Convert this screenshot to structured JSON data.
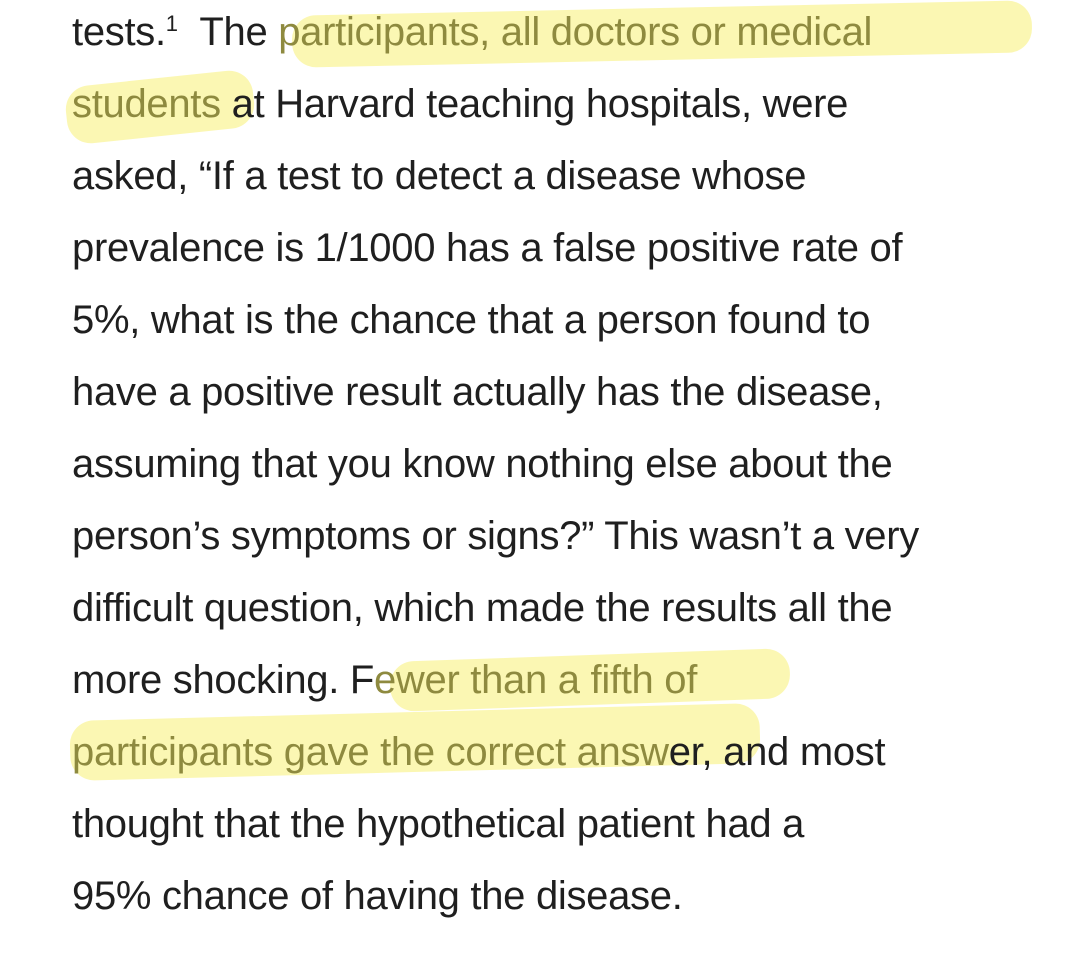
{
  "document": {
    "highlight_color": "#f9f49a",
    "highlight_text_color": "#8e8a3f",
    "text_color": "#1f1f1f",
    "lines": [
      {
        "before": "tests.",
        "sup": "1",
        "mid": "The ",
        "highlight": "participants, all doctors or medical",
        "after": ""
      },
      {
        "before": "",
        "highlight": "students",
        "after": " at Harvard teaching hospitals, were"
      },
      {
        "before": "asked, “If a test to detect a disease whose",
        "highlight": "",
        "after": ""
      },
      {
        "before": "prevalence is 1/1000 has a false positive rate of",
        "highlight": "",
        "after": ""
      },
      {
        "before": "5%, what is the chance that a person found to",
        "highlight": "",
        "after": ""
      },
      {
        "before": "have a positive result actually has the disease,",
        "highlight": "",
        "after": ""
      },
      {
        "before": "assuming that you know nothing else about the",
        "highlight": "",
        "after": ""
      },
      {
        "before": "person’s symptoms or signs?” This wasn’t a very",
        "highlight": "",
        "after": ""
      },
      {
        "before": "difficult question, which made the results all the",
        "highlight": "",
        "after": ""
      },
      {
        "before": "more shocking. F",
        "highlight": "ewer than a fifth of",
        "after": ""
      },
      {
        "before": "",
        "highlight": "participants gave the correct answ",
        "after": "er, and most"
      },
      {
        "before": "thought that the hypothetical patient had a",
        "highlight": "",
        "after": ""
      },
      {
        "before": "95% chance of having the disease.",
        "highlight": "",
        "after": ""
      }
    ]
  }
}
